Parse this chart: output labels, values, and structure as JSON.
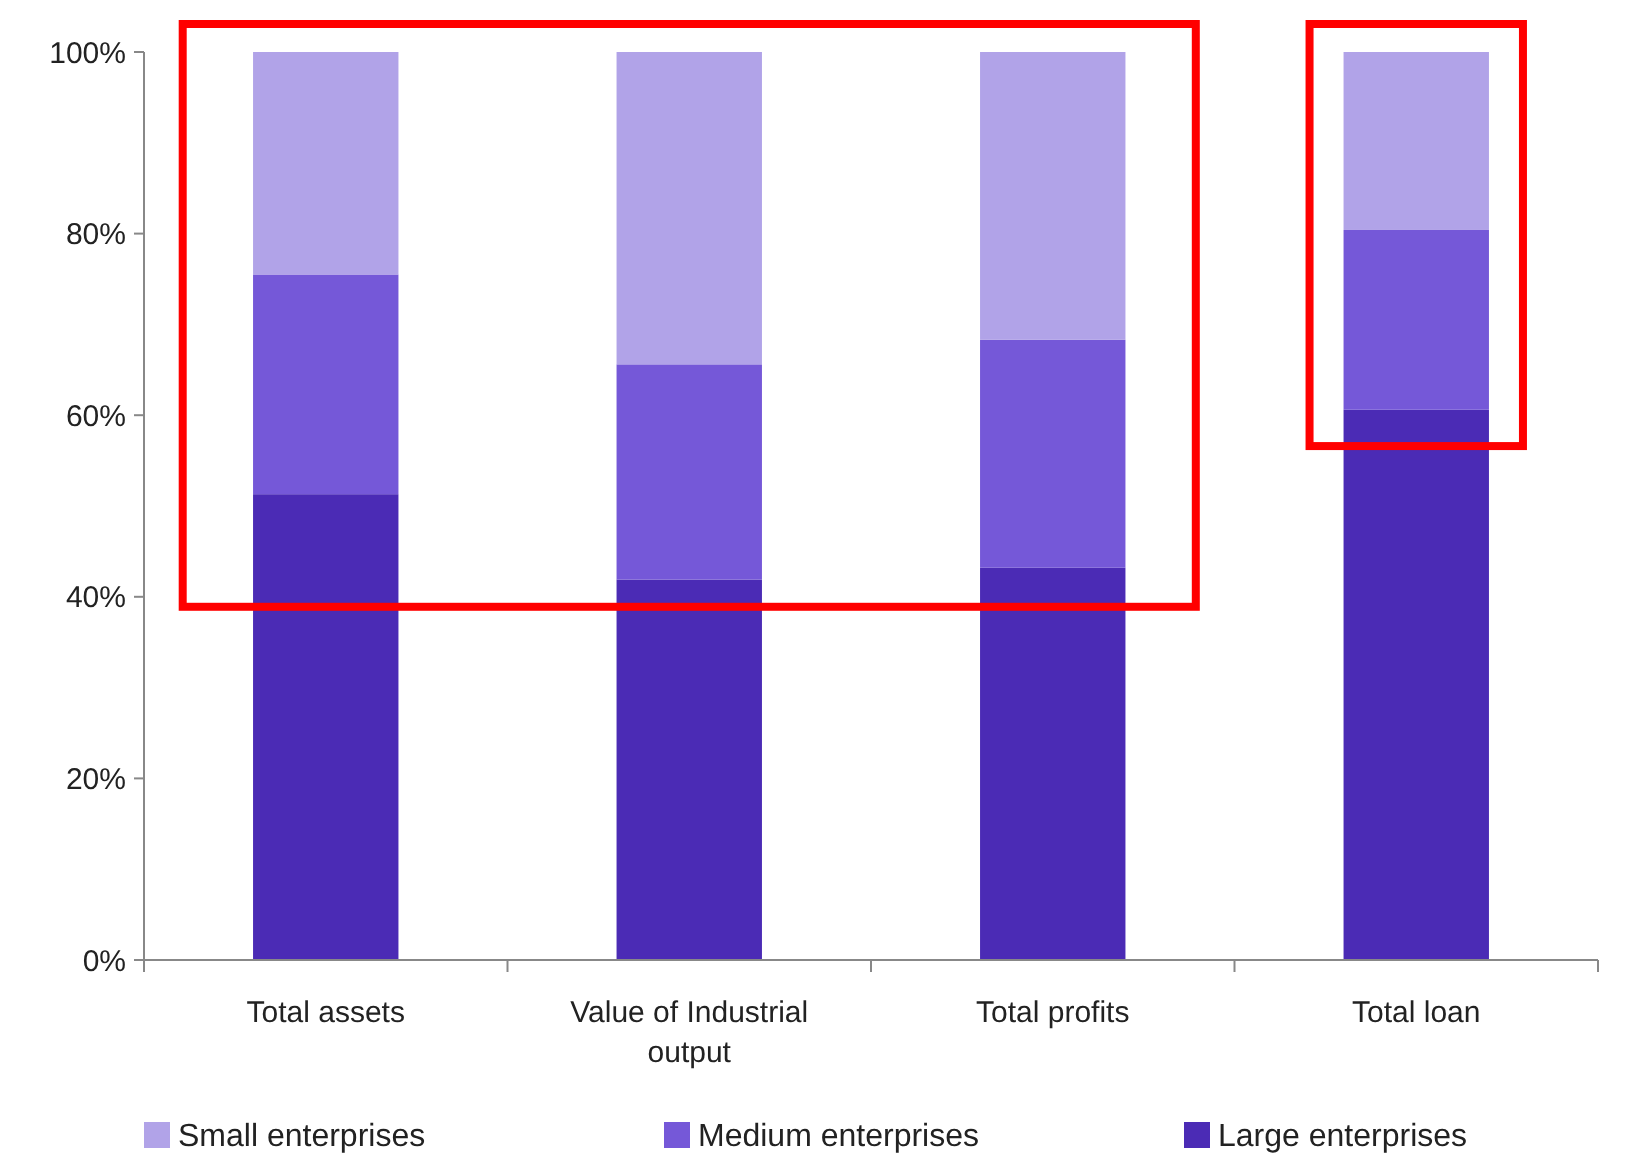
{
  "chart_data": {
    "type": "bar",
    "stacked": true,
    "categories": [
      "Total assets",
      "Value of Industrial output",
      "Total profits",
      "Total loan"
    ],
    "series": [
      {
        "name": "Large enterprises",
        "color": "#4b2bb5",
        "values": [
          51.3,
          41.9,
          43.2,
          60.6
        ]
      },
      {
        "name": "Medium enterprises",
        "color": "#7558d8",
        "values": [
          24.2,
          23.7,
          25.1,
          19.8
        ]
      },
      {
        "name": "Small enterprises",
        "color": "#b1a3e8",
        "values": [
          24.5,
          34.4,
          31.7,
          19.6
        ]
      }
    ],
    "ylim": [
      0,
      100
    ],
    "yticks": [
      {
        "value": 0,
        "label": "0%"
      },
      {
        "value": 20,
        "label": "20%"
      },
      {
        "value": 40,
        "label": "40%"
      },
      {
        "value": 60,
        "label": "60%"
      },
      {
        "value": 80,
        "label": "80%"
      },
      {
        "value": 100,
        "label": "100%"
      }
    ],
    "grid": false,
    "legend": "bottom"
  }
}
